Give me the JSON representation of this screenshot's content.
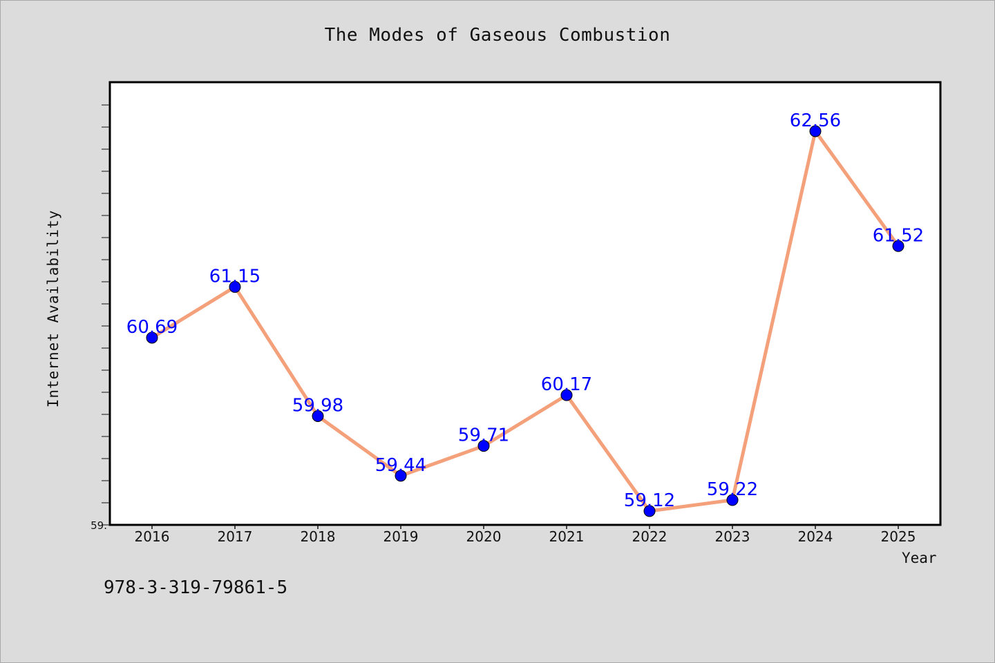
{
  "chart_data": {
    "type": "line",
    "title": "The Modes of Gaseous Combustion",
    "xlabel": "Year",
    "ylabel": "Internet Availability",
    "categories": [
      "2016",
      "2017",
      "2018",
      "2019",
      "2020",
      "2021",
      "2022",
      "2023",
      "2024",
      "2025"
    ],
    "series": [
      {
        "values": [
          60.69,
          61.15,
          59.98,
          59.44,
          59.71,
          60.17,
          59.12,
          59.22,
          62.56,
          61.52
        ],
        "labels": [
          "60.69",
          "61.15",
          "59.98",
          "59.44",
          "59.71",
          "60.17",
          "59.12",
          "59.22",
          "62.56",
          "61.52"
        ]
      }
    ],
    "ylim": [
      59.0,
      63.0
    ],
    "ytick_labels": [
      "59."
    ],
    "grid": false,
    "colors": {
      "line": "#f4a07a",
      "marker": "#0000ff",
      "data_label": "#0000ff",
      "plot_background": "#ffffff",
      "page_background": "#dcdcdc"
    }
  },
  "footer": {
    "isbn": "978-3-319-79861-5"
  }
}
